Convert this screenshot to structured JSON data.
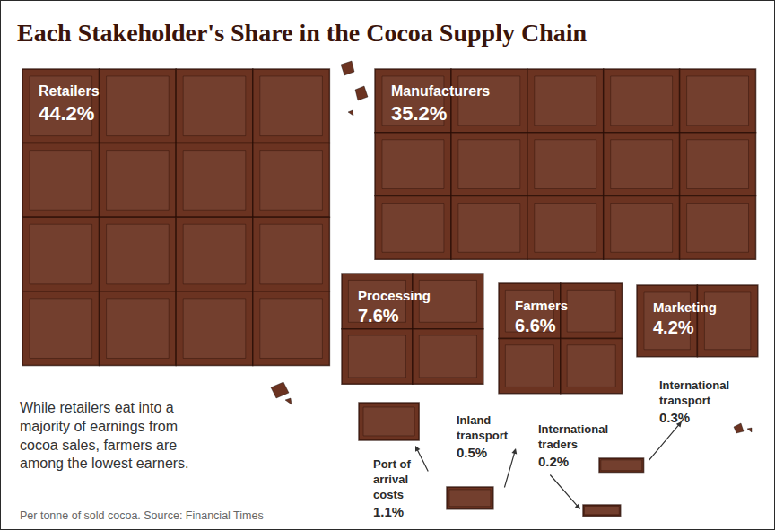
{
  "chart_data": {
    "type": "area",
    "title": "Each Stakeholder's Share in the Cocoa Supply Chain",
    "categories": [
      "Retailers",
      "Manufacturers",
      "Processing",
      "Farmers",
      "Marketing",
      "Port of arrival costs",
      "Inland transport",
      "International traders",
      "International transport"
    ],
    "values": [
      44.2,
      35.2,
      7.6,
      6.6,
      4.2,
      1.1,
      0.5,
      0.2,
      0.3
    ],
    "value_labels": [
      "44.2%",
      "35.2%",
      "7.6%",
      "6.6%",
      "4.2%",
      "1.1%",
      "0.5%",
      "0.2%",
      "0.3%"
    ],
    "data_labels": true,
    "color": "#6b3321",
    "tick_labels": false,
    "annotations": [
      "While retailers eat into a majority of earnings from cocoa sales, farmers are among the lowest earners.",
      "Per tonne of sold cocoa. Source: Financial Times"
    ]
  }
}
